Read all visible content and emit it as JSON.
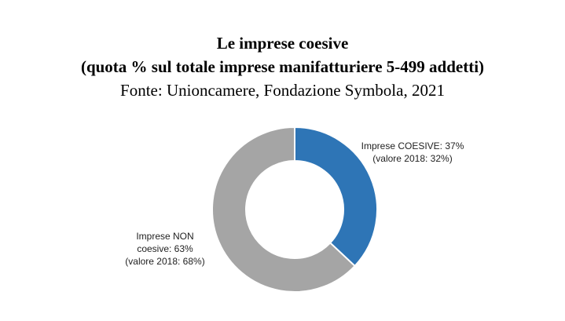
{
  "chart_data": {
    "type": "pie",
    "style": "donut",
    "title": "Le imprese coesive",
    "subtitle": "(quota % sul totale imprese manifatturiere 5-499 addetti)",
    "source": "Fonte: Unioncamere, Fondazione Symbola, 2021",
    "categories": [
      "Imprese COESIVE",
      "Imprese NON coesive"
    ],
    "values": [
      37,
      63
    ],
    "colors": [
      "#2E75B6",
      "#A5A5A5"
    ],
    "labels": {
      "coesive": [
        "Imprese COESIVE: 37%",
        "(valore 2018: 32%)"
      ],
      "non_coesive": [
        "Imprese NON",
        "coesive: 63%",
        "(valore 2018: 68%)"
      ]
    }
  }
}
